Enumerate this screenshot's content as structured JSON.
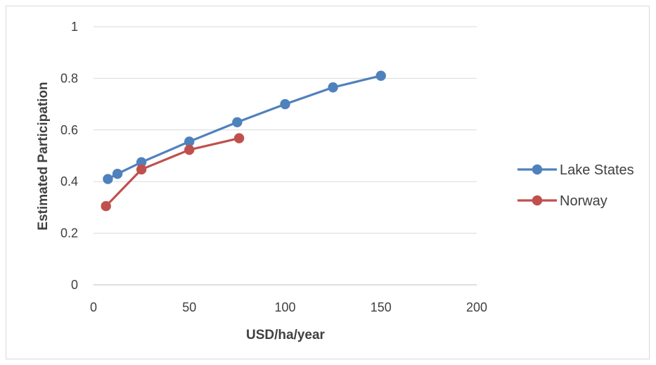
{
  "chart_data": {
    "type": "line",
    "title": "",
    "xlabel": "USD/ha/year",
    "ylabel": "Estimated Participation",
    "xlim": [
      0,
      200
    ],
    "ylim": [
      0,
      1
    ],
    "xticks": [
      0,
      50,
      100,
      150,
      200
    ],
    "yticks": [
      0,
      0.2,
      0.4,
      0.6,
      0.8,
      1
    ],
    "xtick_labels": [
      "0",
      "50",
      "100",
      "150",
      "200"
    ],
    "ytick_labels": [
      "0",
      "0.2",
      "0.4",
      "0.6",
      "0.8",
      "1"
    ],
    "grid": "horizontal",
    "legend_position": "right",
    "series": [
      {
        "name": "Lake States",
        "color": "#4f81bd",
        "points": [
          [
            7.5,
            0.41
          ],
          [
            12.5,
            0.43
          ],
          [
            25,
            0.475
          ],
          [
            50,
            0.555
          ],
          [
            75,
            0.63
          ],
          [
            100,
            0.7
          ],
          [
            125,
            0.765
          ],
          [
            150,
            0.81
          ]
        ]
      },
      {
        "name": "Norway",
        "color": "#c0504d",
        "points": [
          [
            6.5,
            0.305
          ],
          [
            25,
            0.447
          ],
          [
            50,
            0.523
          ],
          [
            76,
            0.568
          ]
        ]
      }
    ]
  }
}
